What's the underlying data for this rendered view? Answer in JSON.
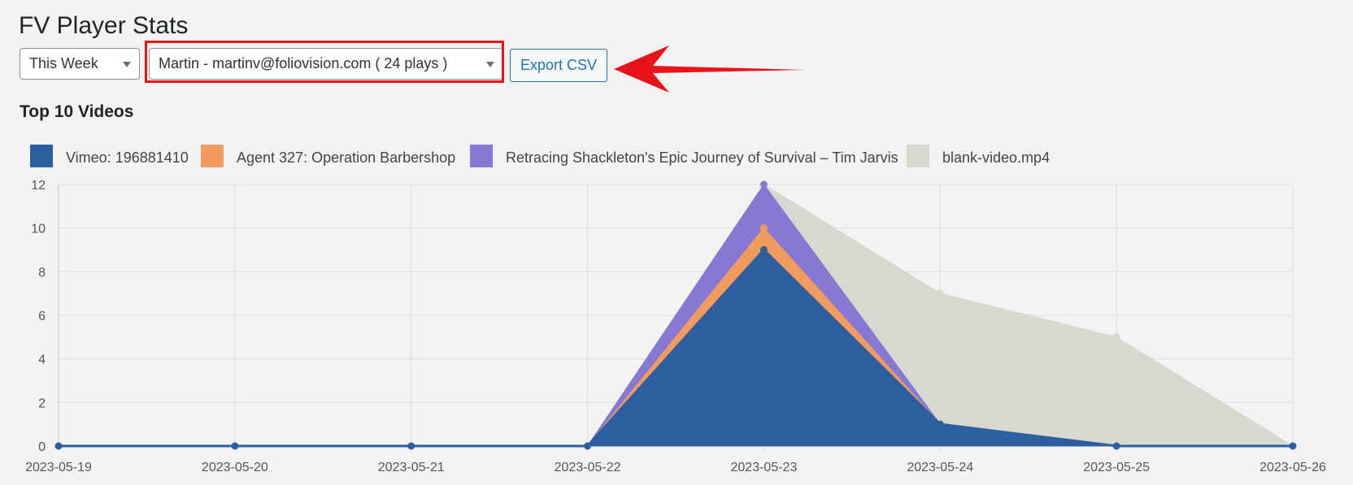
{
  "page": {
    "title": "FV Player Stats",
    "period_select": {
      "value": "This Week"
    },
    "user_select": {
      "value": "Martin - martinv@foliovision.com ( 24 plays )"
    },
    "export_button": "Export CSV",
    "section_title": "Top 10 Videos"
  },
  "annotation": {
    "highlight_color": "#e8121b",
    "arrow_color": "#e8121b"
  },
  "chart_data": {
    "type": "area",
    "stacked": true,
    "x": [
      "2023-05-19",
      "2023-05-20",
      "2023-05-21",
      "2023-05-22",
      "2023-05-23",
      "2023-05-24",
      "2023-05-25",
      "2023-05-26"
    ],
    "yticks": [
      0,
      2,
      4,
      6,
      8,
      10,
      12
    ],
    "ylim": [
      0,
      12
    ],
    "grid": true,
    "legend_position": "top-left",
    "series": [
      {
        "name": "Vimeo: 196881410",
        "color": "#2d5fa0",
        "values": [
          0,
          0,
          0,
          0,
          9,
          1,
          0,
          0
        ]
      },
      {
        "name": "Agent 327: Operation Barbershop",
        "color": "#f09c5e",
        "values": [
          0,
          0,
          0,
          0,
          1,
          0,
          0,
          0
        ]
      },
      {
        "name": "Retracing Shackleton's Epic Journey of Survival – Tim Jarvis",
        "color": "#8878d3",
        "values": [
          0,
          0,
          0,
          0,
          2,
          0,
          0,
          0
        ]
      },
      {
        "name": "blank-video.mp4",
        "color": "#d6d9cf",
        "values": [
          0,
          0,
          0,
          0,
          0,
          6,
          5,
          0
        ]
      }
    ]
  }
}
